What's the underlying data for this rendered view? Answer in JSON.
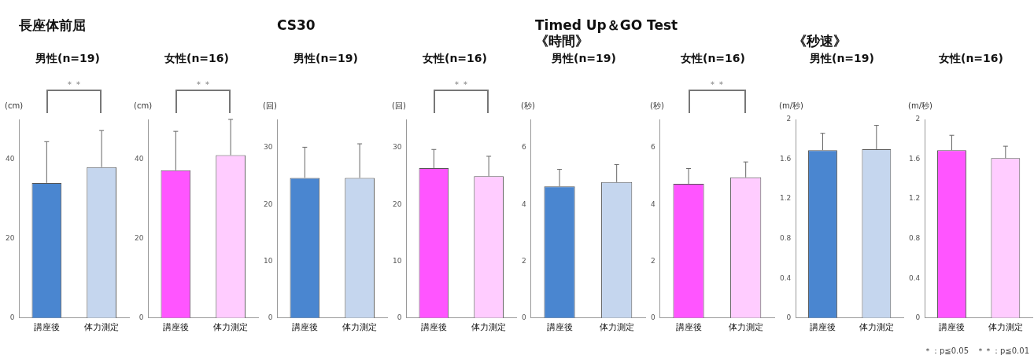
{
  "chart_data": [
    {
      "type": "bar",
      "subtitle": "長座体前屈",
      "title": "男性(n=19)",
      "ylabel": "(cm)",
      "categories": [
        "講座後",
        "体力測定"
      ],
      "values": [
        34,
        38
      ],
      "colors": [
        "#4a86d0",
        "#c5d6ee"
      ],
      "errors": [
        [
          34,
          44.4
        ],
        [
          38,
          47.2
        ]
      ],
      "ylim": [
        0,
        50
      ],
      "yticks": [
        0,
        20,
        40
      ],
      "grid": false,
      "legend": false,
      "annotations": [
        "＊＊"
      ]
    },
    {
      "type": "bar",
      "title": "女性(n=16)",
      "ylabel": "(cm)",
      "categories": [
        "講座後",
        "体力測定"
      ],
      "values": [
        37.2,
        41
      ],
      "colors": [
        "#ff55ff",
        "#ffccff"
      ],
      "errors": [
        [
          37.2,
          47
        ],
        [
          41,
          50
        ]
      ],
      "ylim": [
        0,
        50
      ],
      "yticks": [
        0,
        20,
        40
      ],
      "grid": false,
      "legend": false,
      "annotations": [
        "＊＊"
      ]
    },
    {
      "type": "bar",
      "subtitle": "CS30",
      "title": "男性(n=19)",
      "ylabel": "(回)",
      "categories": [
        "講座後",
        "体力測定"
      ],
      "values": [
        24.7,
        24.7
      ],
      "colors": [
        "#4a86d0",
        "#c5d6ee"
      ],
      "errors": [
        [
          24.7,
          30.1
        ],
        [
          24.7,
          30.7
        ]
      ],
      "ylim": [
        0,
        35
      ],
      "yticks": [
        0,
        10,
        20,
        30
      ],
      "grid": false,
      "legend": false
    },
    {
      "type": "bar",
      "title": "女性(n=16)",
      "ylabel": "(回)",
      "categories": [
        "講座後",
        "体力測定"
      ],
      "values": [
        26.4,
        25
      ],
      "colors": [
        "#ff55ff",
        "#ffccff"
      ],
      "errors": [
        [
          26.4,
          29.7
        ],
        [
          25,
          28.5
        ]
      ],
      "ylim": [
        0,
        35
      ],
      "yticks": [
        0,
        10,
        20,
        30
      ],
      "grid": false,
      "legend": false,
      "annotations": [
        "＊＊"
      ]
    },
    {
      "type": "bar",
      "subtitle": "Timed Up＆GO Test\n《時間》",
      "title": "男性(n=19)",
      "ylabel": "(秒)",
      "categories": [
        "講座後",
        "体力測定"
      ],
      "values": [
        4.64,
        4.79
      ],
      "colors": [
        "#4a86d0",
        "#c5d6ee"
      ],
      "errors": [
        [
          4.64,
          5.24
        ],
        [
          4.79,
          5.41
        ]
      ],
      "ylim": [
        0,
        7
      ],
      "yticks": [
        0,
        2,
        4,
        6
      ],
      "grid": false,
      "legend": false
    },
    {
      "type": "bar",
      "title": "女性(n=16)",
      "ylabel": "(秒)",
      "categories": [
        "講座後",
        "体力測定"
      ],
      "values": [
        4.73,
        4.96
      ],
      "colors": [
        "#ff55ff",
        "#ffccff"
      ],
      "errors": [
        [
          4.73,
          5.27
        ],
        [
          4.96,
          5.5
        ]
      ],
      "ylim": [
        0,
        7
      ],
      "yticks": [
        0,
        2,
        4,
        6
      ],
      "grid": false,
      "legend": false,
      "annotations": [
        "＊＊"
      ]
    },
    {
      "type": "bar",
      "subtitle": "\n《秒速》",
      "title": "男性(n=19)",
      "ylabel": "(m/秒)",
      "categories": [
        "講座後",
        "体力測定"
      ],
      "values": [
        1.69,
        1.7
      ],
      "colors": [
        "#4a86d0",
        "#c5d6ee"
      ],
      "errors": [
        [
          1.69,
          1.86
        ],
        [
          1.7,
          1.94
        ]
      ],
      "ylim": [
        0,
        2
      ],
      "yticks": [
        0,
        0.4,
        0.8,
        1.2,
        1.6,
        2
      ],
      "grid": false,
      "legend": false
    },
    {
      "type": "bar",
      "title": "女性(n=16)",
      "ylabel": "(m/秒)",
      "categories": [
        "講座後",
        "体力測定"
      ],
      "values": [
        1.69,
        1.61
      ],
      "colors": [
        "#ff55ff",
        "#ffccff"
      ],
      "errors": [
        [
          1.69,
          1.84
        ],
        [
          1.61,
          1.73
        ]
      ],
      "ylim": [
        0,
        2
      ],
      "yticks": [
        0,
        0.4,
        0.8,
        1.2,
        1.6,
        2
      ],
      "grid": false,
      "legend": false
    },
    {
      "type": "other",
      "annotations": [
        "＊：p≦0.05　＊＊：p≦0.01"
      ]
    }
  ]
}
